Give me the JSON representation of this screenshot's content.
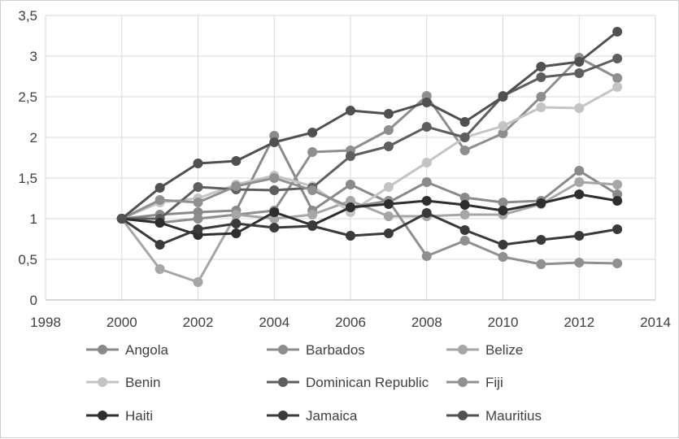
{
  "chart_data": {
    "type": "line",
    "title": "",
    "xlabel": "",
    "ylabel": "",
    "xlim": [
      1998,
      2014
    ],
    "ylim": [
      0,
      3.5
    ],
    "x_ticks": [
      1998,
      2000,
      2002,
      2004,
      2006,
      2008,
      2010,
      2012,
      2014
    ],
    "y_ticks": [
      0,
      0.5,
      1,
      1.5,
      2,
      2.5,
      3,
      3.5
    ],
    "x_tick_labels": [
      "1998",
      "2000",
      "2002",
      "2004",
      "2006",
      "2008",
      "2010",
      "2012",
      "2014"
    ],
    "y_tick_labels": [
      "0",
      "0,5",
      "1",
      "1,5",
      "2",
      "2,5",
      "3",
      "3,5"
    ],
    "grid": "vertical and horizontal",
    "legend_position": "bottom",
    "x": [
      2000,
      2001,
      2002,
      2003,
      2004,
      2005,
      2006,
      2007,
      2008,
      2009,
      2010,
      2011,
      2012,
      2013
    ],
    "series": [
      {
        "name": "Angola",
        "color": "#8a8a8a",
        "values": [
          1.0,
          1.05,
          1.08,
          1.1,
          2.02,
          1.1,
          1.42,
          1.2,
          1.45,
          1.26,
          1.2,
          1.22,
          1.59,
          1.3
        ]
      },
      {
        "name": "Barbados",
        "color": "#8e8e8e",
        "values": [
          1.0,
          0.95,
          1.0,
          1.05,
          1.1,
          1.82,
          1.84,
          2.09,
          2.51,
          1.84,
          2.05,
          2.5,
          2.98,
          2.73
        ]
      },
      {
        "name": "Belize",
        "color": "#a6a6a6",
        "values": [
          1.0,
          0.38,
          0.22,
          1.05,
          1.0,
          1.05,
          1.22,
          1.03,
          1.03,
          1.05,
          1.05,
          1.18,
          1.45,
          1.42
        ]
      },
      {
        "name": "Benin",
        "color": "#c4c4c4",
        "values": [
          1.0,
          1.2,
          1.25,
          1.42,
          1.53,
          1.4,
          1.08,
          1.39,
          1.69,
          2.0,
          2.14,
          2.37,
          2.36,
          2.62
        ]
      },
      {
        "name": "Dominican Republic",
        "color": "#5e5e5e",
        "values": [
          1.0,
          1.0,
          1.39,
          1.36,
          1.35,
          1.38,
          1.77,
          1.89,
          2.13,
          2.0,
          2.51,
          2.74,
          2.79,
          2.97
        ]
      },
      {
        "name": "Fiji",
        "color": "#909090",
        "values": [
          1.0,
          1.23,
          1.2,
          1.4,
          1.5,
          1.35,
          1.14,
          1.22,
          0.54,
          0.73,
          0.53,
          0.44,
          0.46,
          0.45
        ]
      },
      {
        "name": "Haiti",
        "color": "#2e2e2e",
        "values": [
          1.0,
          0.95,
          0.8,
          0.82,
          1.08,
          0.92,
          1.14,
          1.18,
          1.22,
          1.17,
          1.1,
          1.19,
          1.3,
          1.22
        ]
      },
      {
        "name": "Jamaica",
        "color": "#3a3a3a",
        "values": [
          1.0,
          0.68,
          0.87,
          0.94,
          0.89,
          0.91,
          0.79,
          0.82,
          1.07,
          0.86,
          0.68,
          0.74,
          0.79,
          0.87
        ]
      },
      {
        "name": "Mauritius",
        "color": "#505050",
        "values": [
          1.0,
          1.38,
          1.68,
          1.71,
          1.94,
          2.06,
          2.33,
          2.29,
          2.43,
          2.19,
          2.5,
          2.87,
          2.93,
          3.3
        ]
      }
    ]
  }
}
